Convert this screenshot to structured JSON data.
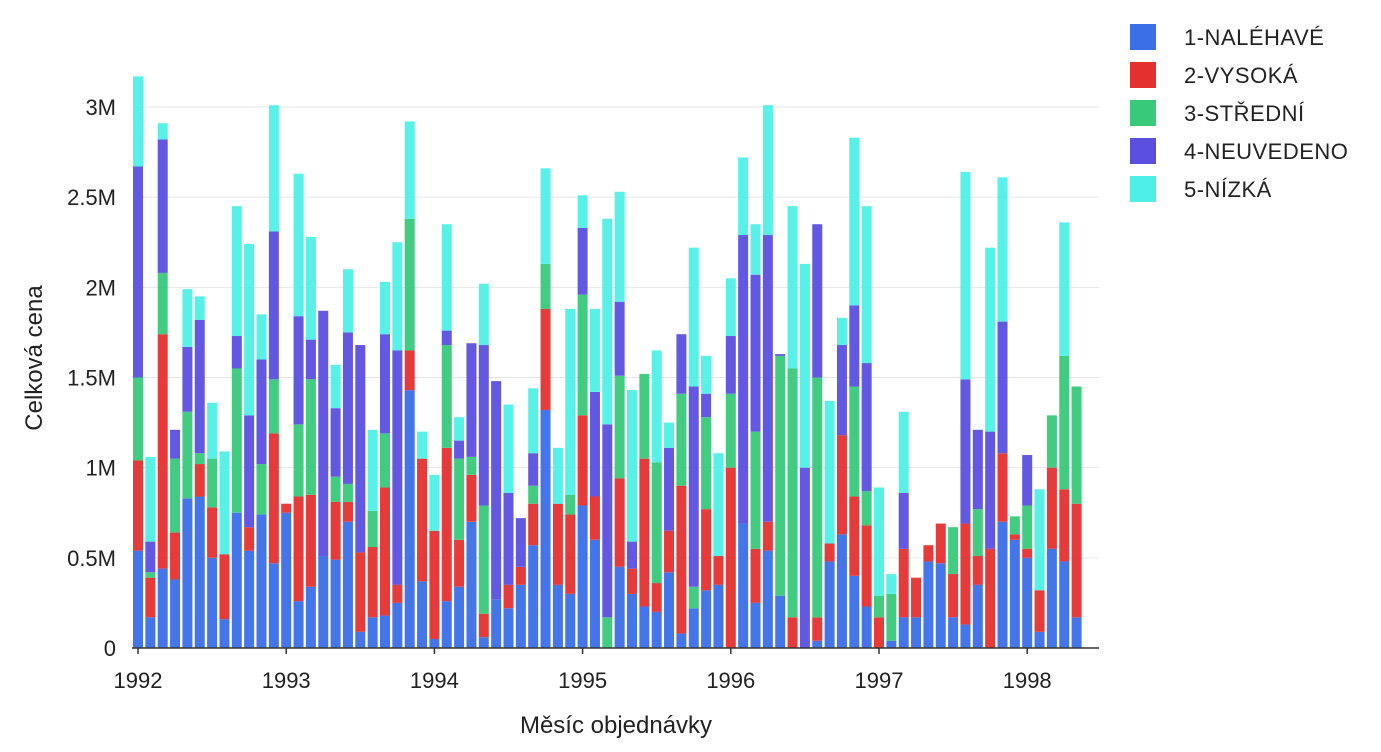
{
  "chart_data": {
    "type": "bar",
    "stacked": true,
    "title": "",
    "xlabel": "Měsíc objednávky",
    "ylabel": "Celková cena",
    "ylim": [
      0,
      3300000
    ],
    "yticks": [
      {
        "value": 0,
        "label": "0"
      },
      {
        "value": 500000,
        "label": "0.5M"
      },
      {
        "value": 1000000,
        "label": "1M"
      },
      {
        "value": 1500000,
        "label": "1.5M"
      },
      {
        "value": 2000000,
        "label": "2M"
      },
      {
        "value": 2500000,
        "label": "2.5M"
      },
      {
        "value": 3000000,
        "label": "3M"
      }
    ],
    "xticks": [
      {
        "index": 0,
        "label": "1992"
      },
      {
        "index": 12,
        "label": "1993"
      },
      {
        "index": 24,
        "label": "1994"
      },
      {
        "index": 36,
        "label": "1995"
      },
      {
        "index": 48,
        "label": "1996"
      },
      {
        "index": 60,
        "label": "1997"
      },
      {
        "index": 72,
        "label": "1998"
      }
    ],
    "grid": true,
    "legend_position": "top-right",
    "start_month": "1992-01",
    "series": [
      {
        "name": "1-NALÉHAVÉ",
        "color": "#3b6fe8",
        "values": [
          540000,
          170000,
          440000,
          380000,
          830000,
          840000,
          500000,
          160000,
          750000,
          540000,
          740000,
          470000,
          750000,
          260000,
          340000,
          510000,
          490000,
          700000,
          90000,
          170000,
          180000,
          250000,
          1430000,
          370000,
          50000,
          260000,
          340000,
          700000,
          60000,
          270000,
          220000,
          350000,
          570000,
          1320000,
          350000,
          300000,
          790000,
          600000,
          0,
          450000,
          300000,
          230000,
          200000,
          420000,
          80000,
          220000,
          320000,
          350000,
          0,
          690000,
          250000,
          540000,
          290000,
          0,
          0,
          40000,
          480000,
          630000,
          400000,
          230000,
          0,
          40000,
          170000,
          170000,
          480000,
          470000,
          170000,
          130000,
          350000,
          0,
          700000,
          600000,
          500000,
          90000,
          550000,
          480000,
          170000
        ]
      },
      {
        "name": "2-VYSOKÁ",
        "color": "#e53030",
        "values": [
          500000,
          220000,
          1300000,
          260000,
          0,
          180000,
          280000,
          360000,
          0,
          130000,
          0,
          720000,
          50000,
          580000,
          510000,
          0,
          320000,
          110000,
          440000,
          390000,
          710000,
          100000,
          220000,
          680000,
          600000,
          850000,
          260000,
          260000,
          130000,
          0,
          130000,
          100000,
          230000,
          560000,
          450000,
          440000,
          500000,
          240000,
          0,
          490000,
          140000,
          820000,
          160000,
          230000,
          820000,
          0,
          450000,
          160000,
          1000000,
          0,
          300000,
          160000,
          0,
          170000,
          0,
          130000,
          100000,
          550000,
          440000,
          450000,
          170000,
          0,
          380000,
          220000,
          90000,
          220000,
          240000,
          560000,
          160000,
          550000,
          380000,
          30000,
          50000,
          230000,
          450000,
          400000,
          630000
        ]
      },
      {
        "name": "3-STŘEDNÍ",
        "color": "#38c97a",
        "values": [
          460000,
          30000,
          340000,
          410000,
          480000,
          60000,
          270000,
          0,
          800000,
          0,
          280000,
          300000,
          0,
          400000,
          640000,
          0,
          140000,
          100000,
          0,
          200000,
          300000,
          0,
          730000,
          0,
          0,
          570000,
          450000,
          100000,
          600000,
          0,
          0,
          0,
          100000,
          250000,
          0,
          110000,
          670000,
          0,
          170000,
          570000,
          0,
          470000,
          670000,
          0,
          510000,
          120000,
          510000,
          0,
          410000,
          0,
          650000,
          0,
          1330000,
          1380000,
          0,
          1330000,
          0,
          0,
          610000,
          190000,
          120000,
          260000,
          0,
          0,
          0,
          0,
          260000,
          0,
          260000,
          0,
          0,
          100000,
          240000,
          0,
          290000,
          740000,
          650000
        ]
      },
      {
        "name": "4-NEUVEDENO",
        "color": "#5b4fe0",
        "values": [
          1170000,
          170000,
          740000,
          160000,
          360000,
          740000,
          0,
          0,
          180000,
          620000,
          580000,
          820000,
          0,
          600000,
          220000,
          1360000,
          380000,
          840000,
          1150000,
          0,
          550000,
          1300000,
          0,
          0,
          0,
          80000,
          100000,
          630000,
          890000,
          1210000,
          510000,
          270000,
          180000,
          0,
          0,
          0,
          370000,
          580000,
          1070000,
          410000,
          150000,
          0,
          0,
          460000,
          330000,
          1110000,
          130000,
          0,
          320000,
          1600000,
          870000,
          1590000,
          10000,
          0,
          1000000,
          850000,
          0,
          500000,
          450000,
          710000,
          0,
          0,
          310000,
          0,
          0,
          0,
          0,
          800000,
          440000,
          650000,
          730000,
          0,
          280000,
          0,
          0,
          0,
          0
        ]
      },
      {
        "name": "5-NÍZKÁ",
        "color": "#4ef0e6",
        "values": [
          500000,
          470000,
          90000,
          0,
          320000,
          130000,
          310000,
          570000,
          720000,
          950000,
          250000,
          700000,
          0,
          790000,
          570000,
          0,
          240000,
          350000,
          0,
          450000,
          290000,
          600000,
          540000,
          150000,
          310000,
          590000,
          130000,
          0,
          340000,
          0,
          490000,
          0,
          360000,
          530000,
          310000,
          1030000,
          180000,
          460000,
          1140000,
          610000,
          840000,
          0,
          620000,
          140000,
          0,
          770000,
          210000,
          570000,
          320000,
          430000,
          280000,
          720000,
          0,
          900000,
          1130000,
          0,
          790000,
          150000,
          930000,
          870000,
          600000,
          110000,
          450000,
          0,
          0,
          0,
          0,
          1150000,
          0,
          1020000,
          800000,
          0,
          0,
          560000,
          0,
          740000,
          0
        ]
      }
    ]
  }
}
